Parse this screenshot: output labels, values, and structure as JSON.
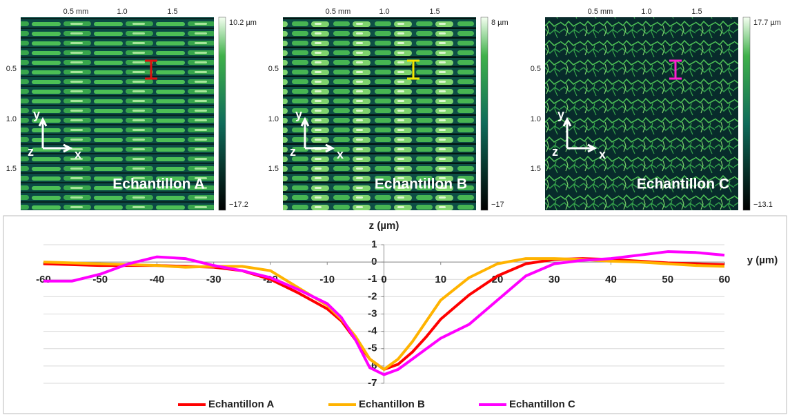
{
  "panels": [
    {
      "top_ticks": [
        "0.5 mm",
        "1.0",
        "1.5"
      ],
      "left_ticks": [
        "0.5",
        "1.0",
        "1.5"
      ],
      "colorbar_max": "10.2 µm",
      "colorbar_min": "−17.2",
      "axis_y": "y",
      "axis_z": "z",
      "axis_x": "x",
      "label": "Echantillon A"
    },
    {
      "top_ticks": [
        "0.5 mm",
        "1.0",
        "1.5"
      ],
      "left_ticks": [
        "0.5",
        "1.0",
        "1.5"
      ],
      "colorbar_max": "8 µm",
      "colorbar_min": "−17",
      "axis_y": "y",
      "axis_z": "z",
      "axis_x": "x",
      "label": "Echantillon B"
    },
    {
      "top_ticks": [
        "0.5 mm",
        "1.0",
        "1.5"
      ],
      "left_ticks": [
        "0.5",
        "1.0",
        "1.5"
      ],
      "colorbar_max": "17.7 µm",
      "colorbar_min": "−13.1",
      "axis_y": "y",
      "axis_z": "z",
      "axis_x": "x",
      "label": "Echantillon C"
    }
  ],
  "chart_data": {
    "type": "line",
    "y_label": "z (µm)",
    "x_label": "y (µm)",
    "x": [
      -60,
      -55,
      -50,
      -45,
      -40,
      -35,
      -30,
      -25,
      -20,
      -15,
      -10,
      -7.5,
      -5,
      -2.5,
      0,
      2.5,
      5,
      7.5,
      10,
      15,
      20,
      25,
      30,
      35,
      40,
      45,
      50,
      55,
      60
    ],
    "series": [
      {
        "name": "Echantillon A",
        "color": "#ff0000",
        "values": [
          -0.1,
          -0.15,
          -0.2,
          -0.2,
          -0.2,
          -0.25,
          -0.3,
          -0.5,
          -1.0,
          -1.8,
          -2.7,
          -3.4,
          -4.5,
          -5.6,
          -6.2,
          -5.9,
          -5.2,
          -4.3,
          -3.3,
          -1.9,
          -0.8,
          -0.1,
          0.15,
          0.2,
          0.15,
          0.05,
          -0.05,
          -0.1,
          -0.15
        ]
      },
      {
        "name": "Echantillon B",
        "color": "#ffb300",
        "values": [
          0,
          -0.05,
          -0.1,
          -0.15,
          -0.2,
          -0.3,
          -0.25,
          -0.25,
          -0.5,
          -1.5,
          -2.5,
          -3.3,
          -4.3,
          -5.6,
          -6.2,
          -5.6,
          -4.6,
          -3.4,
          -2.2,
          -0.9,
          -0.1,
          0.2,
          0.2,
          0.15,
          0.05,
          0,
          -0.1,
          -0.2,
          -0.25
        ]
      },
      {
        "name": "Echantillon C",
        "color": "#ff00ff",
        "values": [
          -1.1,
          -1.1,
          -0.7,
          -0.1,
          0.3,
          0.2,
          -0.2,
          -0.5,
          -0.9,
          -1.6,
          -2.4,
          -3.2,
          -4.5,
          -6.1,
          -6.5,
          -6.2,
          -5.6,
          -5.0,
          -4.4,
          -3.6,
          -2.2,
          -0.8,
          -0.1,
          0.1,
          0.2,
          0.4,
          0.6,
          0.55,
          0.4
        ]
      }
    ],
    "xlim": [
      -60,
      60
    ],
    "xticks": [
      -60,
      -50,
      -40,
      -30,
      -20,
      -10,
      0,
      10,
      20,
      30,
      40,
      50,
      60
    ],
    "ylim": [
      -7,
      1
    ],
    "yticks": [
      -7,
      -6,
      -5,
      -4,
      -3,
      -2,
      -1,
      0,
      1
    ],
    "grid": true
  }
}
